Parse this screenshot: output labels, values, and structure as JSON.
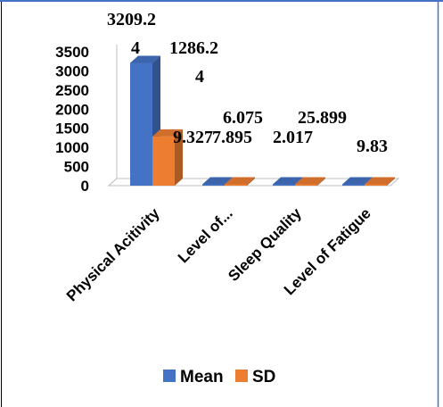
{
  "chart_data": {
    "type": "bar",
    "title": "",
    "xlabel": "",
    "ylabel": "",
    "categories": [
      "Physical Acitivity",
      "Level of...",
      "Sleep Quality",
      "Level of Fatigue"
    ],
    "series": [
      {
        "name": "Mean",
        "color": "#4472C4",
        "values": [
          3209.24,
          9.327,
          6.075,
          25.899
        ]
      },
      {
        "name": "SD",
        "color": "#ED7D31",
        "values": [
          1286.24,
          7.895,
          2.017,
          9.83
        ]
      }
    ],
    "data_labels": {
      "Mean": [
        "3209.2\n4",
        "9.327",
        "6.075",
        "25.899"
      ],
      "SD": [
        "1286.2\n4",
        "7.895",
        "2.017",
        "9.83"
      ]
    },
    "yticks": [
      "0",
      "500",
      "1000",
      "1500",
      "2000",
      "2500",
      "3000",
      "3500"
    ],
    "ylim": [
      0,
      3500
    ],
    "grid": false,
    "legend_position": "bottom",
    "style": "3d-clustered-column"
  }
}
